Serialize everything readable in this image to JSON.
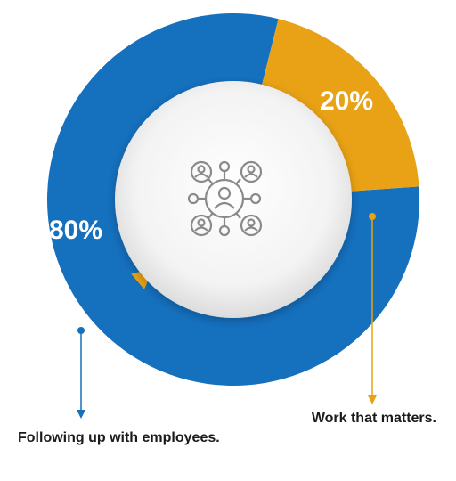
{
  "chart_data": {
    "type": "pie",
    "categories": [
      "Following up with employees.",
      "Work that matters."
    ],
    "values": [
      80,
      20
    ],
    "value_labels": [
      "80%",
      "20%"
    ],
    "colors": [
      "#1570be",
      "#e9a215"
    ]
  }
}
